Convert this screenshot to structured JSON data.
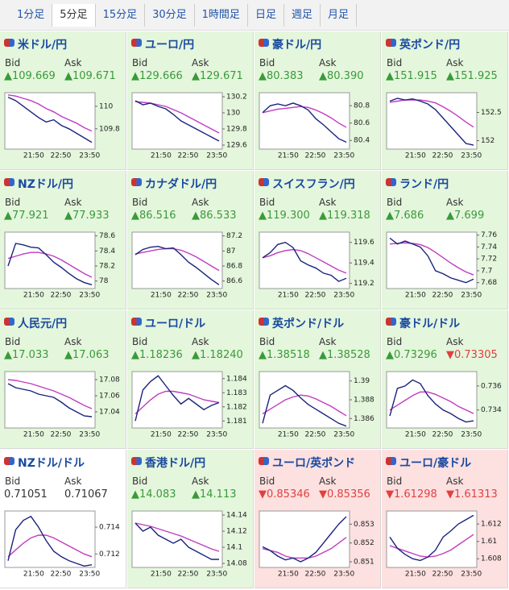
{
  "tabs": [
    "1分足",
    "5分足",
    "15分足",
    "30分足",
    "1時間足",
    "日足",
    "週足",
    "月足"
  ],
  "active_tab": 1,
  "cells": [
    {
      "title": "米ドル/円",
      "bid_label": "Bid",
      "ask_label": "Ask",
      "bid": "▲109.669",
      "ask": "▲109.671",
      "bid_color": "#3a9a3a",
      "ask_color": "#3a9a3a",
      "background": "#e4f6dc",
      "chart": {
        "type": "line",
        "values": [
          110.08,
          110.05,
          110.0,
          109.95,
          109.9,
          109.86,
          109.88,
          109.83,
          109.8,
          109.76,
          109.72,
          109.68
        ],
        "ma": [
          110.1,
          110.09,
          110.07,
          110.05,
          110.02,
          109.98,
          109.95,
          109.91,
          109.88,
          109.85,
          109.81,
          109.78
        ],
        "ylim": [
          109.62,
          110.12
        ],
        "yticks": [
          109.8,
          110
        ],
        "xticks": [
          "21:50",
          "22:50",
          "23:50"
        ]
      }
    },
    {
      "title": "ユーロ/円",
      "bid_label": "Bid",
      "ask_label": "Ask",
      "bid": "▲129.666",
      "ask": "▲129.671",
      "bid_color": "#3a9a3a",
      "ask_color": "#3a9a3a",
      "background": "#e4f6dc",
      "chart": {
        "type": "line",
        "values": [
          130.15,
          130.1,
          130.12,
          130.08,
          130.05,
          129.98,
          129.9,
          129.85,
          129.8,
          129.75,
          129.7,
          129.65
        ],
        "ma": [
          130.14,
          130.13,
          130.12,
          130.1,
          130.08,
          130.04,
          130.0,
          129.95,
          129.9,
          129.85,
          129.8,
          129.75
        ],
        "ylim": [
          129.55,
          130.25
        ],
        "yticks": [
          129.6,
          129.8,
          130,
          130.2
        ],
        "xticks": [
          "21:50",
          "22:50",
          "23:50"
        ]
      }
    },
    {
      "title": "豪ドル/円",
      "bid_label": "Bid",
      "ask_label": "Ask",
      "bid": "▲80.383",
      "ask": "▲80.390",
      "bid_color": "#3a9a3a",
      "ask_color": "#3a9a3a",
      "background": "#e4f6dc",
      "chart": {
        "type": "line",
        "values": [
          80.72,
          80.8,
          80.82,
          80.8,
          80.83,
          80.8,
          80.75,
          80.65,
          80.58,
          80.5,
          80.42,
          80.38
        ],
        "ma": [
          80.72,
          80.74,
          80.76,
          80.77,
          80.78,
          80.79,
          80.78,
          80.75,
          80.71,
          80.66,
          80.6,
          80.55
        ],
        "ylim": [
          80.3,
          80.95
        ],
        "yticks": [
          80.4,
          80.6,
          80.8
        ],
        "xticks": [
          "21:50",
          "22:50",
          "23:50"
        ]
      }
    },
    {
      "title": "英ポンド/円",
      "bid_label": "Bid",
      "ask_label": "Ask",
      "bid": "▲151.915",
      "ask": "▲151.925",
      "bid_color": "#3a9a3a",
      "ask_color": "#3a9a3a",
      "background": "#e4f6dc",
      "chart": {
        "type": "line",
        "values": [
          152.7,
          152.75,
          152.72,
          152.74,
          152.7,
          152.65,
          152.55,
          152.4,
          152.25,
          152.1,
          151.95,
          151.92
        ],
        "ma": [
          152.68,
          152.7,
          152.72,
          152.72,
          152.72,
          152.7,
          152.67,
          152.6,
          152.52,
          152.43,
          152.33,
          152.24
        ],
        "ylim": [
          151.85,
          152.85
        ],
        "yticks": [
          152,
          152.5
        ],
        "xticks": [
          "21:50",
          "22:50",
          "23:50"
        ]
      }
    },
    {
      "title": "NZドル/円",
      "bid_label": "Bid",
      "ask_label": "Ask",
      "bid": "▲77.921",
      "ask": "▲77.933",
      "bid_color": "#3a9a3a",
      "ask_color": "#3a9a3a",
      "background": "#e4f6dc",
      "chart": {
        "type": "line",
        "values": [
          78.2,
          78.5,
          78.48,
          78.45,
          78.44,
          78.35,
          78.25,
          78.18,
          78.1,
          78.03,
          77.98,
          77.95
        ],
        "ma": [
          78.3,
          78.33,
          78.36,
          78.38,
          78.38,
          78.36,
          78.33,
          78.28,
          78.22,
          78.16,
          78.1,
          78.05
        ],
        "ylim": [
          77.9,
          78.65
        ],
        "yticks": [
          78,
          78.2,
          78.4,
          78.6
        ],
        "xticks": [
          "21:50",
          "22:50",
          "23:50"
        ]
      }
    },
    {
      "title": "カナダドル/円",
      "bid_label": "Bid",
      "ask_label": "Ask",
      "bid": "▲86.516",
      "ask": "▲86.533",
      "bid_color": "#3a9a3a",
      "ask_color": "#3a9a3a",
      "background": "#e4f6dc",
      "chart": {
        "type": "line",
        "values": [
          86.95,
          87.02,
          87.05,
          87.06,
          87.03,
          87.04,
          86.95,
          86.85,
          86.78,
          86.7,
          86.62,
          86.55
        ],
        "ma": [
          86.96,
          86.98,
          87.0,
          87.02,
          87.03,
          87.03,
          87.01,
          86.97,
          86.92,
          86.86,
          86.8,
          86.74
        ],
        "ylim": [
          86.5,
          87.25
        ],
        "yticks": [
          86.6,
          86.8,
          87,
          87.2
        ],
        "xticks": [
          "21:50",
          "22:50",
          "23:50"
        ]
      }
    },
    {
      "title": "スイスフラン/円",
      "bid_label": "Bid",
      "ask_label": "Ask",
      "bid": "▲119.300",
      "ask": "▲119.318",
      "bid_color": "#3a9a3a",
      "ask_color": "#3a9a3a",
      "background": "#e4f6dc",
      "chart": {
        "type": "line",
        "values": [
          119.45,
          119.5,
          119.58,
          119.6,
          119.55,
          119.42,
          119.38,
          119.35,
          119.3,
          119.28,
          119.22,
          119.25
        ],
        "ma": [
          119.45,
          119.47,
          119.5,
          119.52,
          119.53,
          119.52,
          119.49,
          119.45,
          119.41,
          119.37,
          119.33,
          119.3
        ],
        "ylim": [
          119.15,
          119.7
        ],
        "yticks": [
          119.2,
          119.4,
          119.6
        ],
        "xticks": [
          "21:50",
          "22:50",
          "23:50"
        ]
      }
    },
    {
      "title": "ランド/円",
      "bid_label": "Bid",
      "ask_label": "Ask",
      "bid": "▲7.686",
      "ask": "▲7.699",
      "bid_color": "#3a9a3a",
      "ask_color": "#3a9a3a",
      "background": "#e4f6dc",
      "chart": {
        "type": "line",
        "values": [
          7.755,
          7.745,
          7.75,
          7.745,
          7.74,
          7.725,
          7.7,
          7.695,
          7.688,
          7.684,
          7.68,
          7.686
        ],
        "ma": [
          7.745,
          7.746,
          7.747,
          7.746,
          7.744,
          7.739,
          7.731,
          7.722,
          7.713,
          7.705,
          7.698,
          7.693
        ],
        "ylim": [
          7.67,
          7.765
        ],
        "yticks": [
          7.68,
          7.7,
          7.72,
          7.74,
          7.76
        ],
        "xticks": [
          "21:50",
          "22:50",
          "23:50"
        ]
      }
    },
    {
      "title": "人民元/円",
      "bid_label": "Bid",
      "ask_label": "Ask",
      "bid": "▲17.033",
      "ask": "▲17.063",
      "bid_color": "#3a9a3a",
      "ask_color": "#3a9a3a",
      "background": "#e4f6dc",
      "chart": {
        "type": "line",
        "values": [
          17.075,
          17.07,
          17.068,
          17.066,
          17.062,
          17.06,
          17.058,
          17.052,
          17.045,
          17.04,
          17.035,
          17.034
        ],
        "ma": [
          17.08,
          17.079,
          17.077,
          17.075,
          17.072,
          17.069,
          17.066,
          17.062,
          17.058,
          17.053,
          17.048,
          17.044
        ],
        "ylim": [
          17.02,
          17.09
        ],
        "yticks": [
          17.04,
          17.06,
          17.08
        ],
        "xticks": [
          "21:50",
          "22:50",
          "23:50"
        ]
      }
    },
    {
      "title": "ユーロ/ドル",
      "bid_label": "Bid",
      "ask_label": "Ask",
      "bid": "▲1.18236",
      "ask": "▲1.18240",
      "bid_color": "#3a9a3a",
      "ask_color": "#3a9a3a",
      "background": "#e4f6dc",
      "chart": {
        "type": "line",
        "values": [
          1.181,
          1.1832,
          1.1838,
          1.1842,
          1.1835,
          1.1828,
          1.1822,
          1.1826,
          1.1822,
          1.1818,
          1.1821,
          1.1823
        ],
        "ma": [
          1.1815,
          1.182,
          1.1825,
          1.1829,
          1.1831,
          1.1831,
          1.183,
          1.1829,
          1.1827,
          1.1825,
          1.1824,
          1.1823
        ],
        "ylim": [
          1.1805,
          1.1845
        ],
        "yticks": [
          1.181,
          1.182,
          1.183,
          1.184
        ],
        "xticks": [
          "21:50",
          "22:50",
          "23:50"
        ]
      }
    },
    {
      "title": "英ポンド/ドル",
      "bid_label": "Bid",
      "ask_label": "Ask",
      "bid": "▲1.38518",
      "ask": "▲1.38528",
      "bid_color": "#3a9a3a",
      "ask_color": "#3a9a3a",
      "background": "#e4f6dc",
      "chart": {
        "type": "line",
        "values": [
          1.3855,
          1.3885,
          1.389,
          1.3895,
          1.389,
          1.3882,
          1.3875,
          1.387,
          1.3865,
          1.386,
          1.3855,
          1.3852
        ],
        "ma": [
          1.3865,
          1.387,
          1.3875,
          1.388,
          1.3883,
          1.3885,
          1.3884,
          1.3881,
          1.3877,
          1.3873,
          1.3868,
          1.3863
        ],
        "ylim": [
          1.385,
          1.391
        ],
        "yticks": [
          1.386,
          1.388,
          1.39
        ],
        "xticks": [
          "21:50",
          "22:50",
          "23:50"
        ]
      }
    },
    {
      "title": "豪ドル/ドル",
      "bid_label": "Bid",
      "ask_label": "Ask",
      "bid": "▲0.73296",
      "ask": "▼0.73305",
      "bid_color": "#3a9a3a",
      "ask_color": "#e04040",
      "background": "#e4f6dc",
      "chart": {
        "type": "line",
        "values": [
          0.7335,
          0.7358,
          0.736,
          0.7365,
          0.7362,
          0.7352,
          0.7345,
          0.734,
          0.7337,
          0.7333,
          0.733,
          0.7331
        ],
        "ma": [
          0.734,
          0.7344,
          0.7348,
          0.7352,
          0.7355,
          0.7355,
          0.7353,
          0.735,
          0.7347,
          0.7343,
          0.734,
          0.7337
        ],
        "ylim": [
          0.7325,
          0.7372
        ],
        "yticks": [
          0.734,
          0.736
        ],
        "xticks": [
          "21:50",
          "22:50",
          "23:50"
        ]
      }
    },
    {
      "title": "NZドル/ドル",
      "bid_label": "Bid",
      "ask_label": "Ask",
      "bid": "0.71051",
      "ask": "0.71067",
      "bid_color": "#333333",
      "ask_color": "#333333",
      "background": "#ffffff",
      "chart": {
        "type": "line",
        "values": [
          0.7115,
          0.7138,
          0.7145,
          0.7148,
          0.714,
          0.713,
          0.7122,
          0.7118,
          0.7115,
          0.7113,
          0.7111,
          0.7112
        ],
        "ma": [
          0.7118,
          0.7123,
          0.7128,
          0.7132,
          0.7134,
          0.7134,
          0.7132,
          0.7129,
          0.7126,
          0.7123,
          0.712,
          0.7118
        ],
        "ylim": [
          0.711,
          0.7152
        ],
        "yticks": [
          0.712,
          0.714
        ],
        "xticks": [
          "21:50",
          "22:50",
          "23:50"
        ]
      }
    },
    {
      "title": "香港ドル/円",
      "bid_label": "Bid",
      "ask_label": "Ask",
      "bid": "▲14.083",
      "ask": "▲14.113",
      "bid_color": "#3a9a3a",
      "ask_color": "#3a9a3a",
      "background": "#e4f6dc",
      "chart": {
        "type": "line",
        "values": [
          14.13,
          14.12,
          14.125,
          14.115,
          14.11,
          14.105,
          14.11,
          14.1,
          14.095,
          14.09,
          14.085,
          14.085
        ],
        "ma": [
          14.13,
          14.128,
          14.126,
          14.123,
          14.12,
          14.117,
          14.114,
          14.11,
          14.106,
          14.102,
          14.098,
          14.095
        ],
        "ylim": [
          14.075,
          14.145
        ],
        "yticks": [
          14.08,
          14.1,
          14.12,
          14.14
        ],
        "xticks": [
          "21:50",
          "22:50",
          "23:50"
        ]
      }
    },
    {
      "title": "ユーロ/英ポンド",
      "bid_label": "Bid",
      "ask_label": "Ask",
      "bid": "▼0.85346",
      "ask": "▼0.85356",
      "bid_color": "#e04040",
      "ask_color": "#e04040",
      "background": "#fde0e0",
      "chart": {
        "type": "line",
        "values": [
          0.8518,
          0.8516,
          0.8513,
          0.8511,
          0.8512,
          0.851,
          0.8512,
          0.8515,
          0.852,
          0.8525,
          0.853,
          0.8534
        ],
        "ma": [
          0.8517,
          0.8516,
          0.8515,
          0.8513,
          0.8512,
          0.8512,
          0.8512,
          0.8513,
          0.8515,
          0.8517,
          0.852,
          0.8523
        ],
        "ylim": [
          0.8507,
          0.8537
        ],
        "yticks": [
          0.851,
          0.852,
          0.853
        ],
        "xticks": [
          "21:50",
          "22:50",
          "23:50"
        ]
      }
    },
    {
      "title": "ユーロ/豪ドル",
      "bid_label": "Bid",
      "ask_label": "Ask",
      "bid": "▼1.61298",
      "ask": "▼1.61313",
      "bid_color": "#e04040",
      "ask_color": "#e04040",
      "background": "#fde0e0",
      "chart": {
        "type": "line",
        "values": [
          1.6105,
          1.6092,
          1.6085,
          1.608,
          1.6078,
          1.6082,
          1.609,
          1.6105,
          1.6112,
          1.612,
          1.6125,
          1.613
        ],
        "ma": [
          1.6095,
          1.6092,
          1.6089,
          1.6086,
          1.6083,
          1.6082,
          1.6083,
          1.6086,
          1.609,
          1.6096,
          1.6102,
          1.6108
        ],
        "ylim": [
          1.607,
          1.6135
        ],
        "yticks": [
          1.608,
          1.61,
          1.612
        ],
        "xticks": [
          "21:50",
          "22:50",
          "23:50"
        ]
      }
    }
  ]
}
